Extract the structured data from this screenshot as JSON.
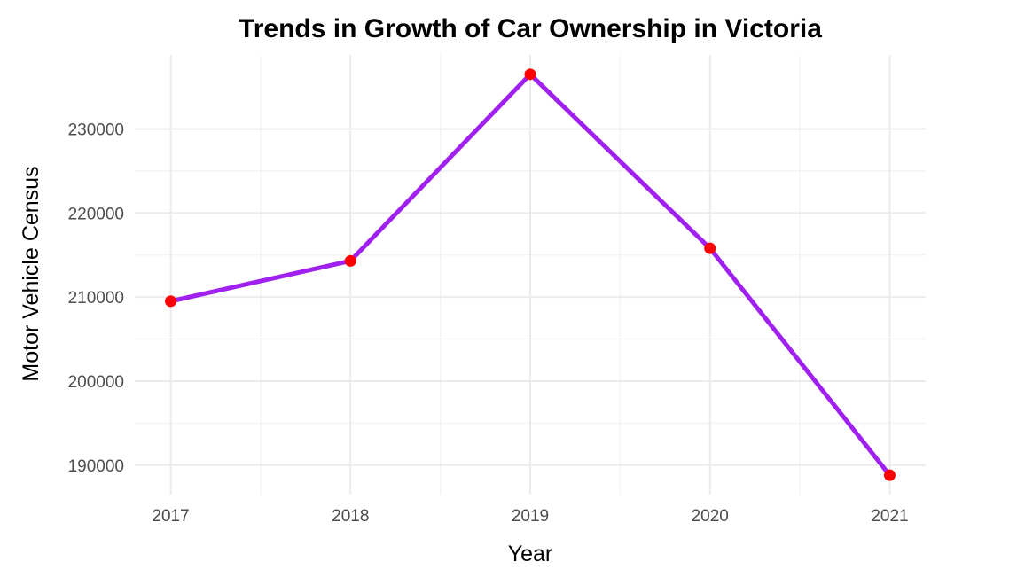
{
  "chart_data": {
    "type": "line",
    "title": "Trends in Growth of Car Ownership in Victoria",
    "xlabel": "Year",
    "ylabel": "Motor Vehicle Census",
    "x": [
      2017,
      2018,
      2019,
      2020,
      2021
    ],
    "y_ticks": [
      190000,
      200000,
      210000,
      220000,
      230000
    ],
    "x_tick_labels": [
      "2017",
      "2018",
      "2019",
      "2020",
      "2021"
    ],
    "y_tick_labels": [
      "190000",
      "200000",
      "210000",
      "220000",
      "230000"
    ],
    "series": [
      {
        "values": [
          209500,
          214300,
          236500,
          215800,
          188800
        ],
        "line_color": "#a020f0",
        "marker_color": "#ff0000"
      }
    ],
    "xlim": [
      2016.8,
      2021.2
    ],
    "ylim": [
      186500,
      238800
    ],
    "grid": true,
    "legend": "none",
    "theme": "minimal"
  }
}
